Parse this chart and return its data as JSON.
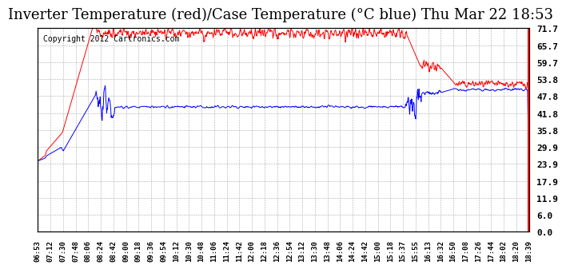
{
  "title": "Inverter Temperature (red)/Case Temperature (°C blue) Thu Mar 22 18:53",
  "copyright": "Copyright 2012 Cartronics.com",
  "ylabel_right_ticks": [
    0.0,
    6.0,
    11.9,
    17.9,
    23.9,
    29.9,
    35.8,
    41.8,
    47.8,
    53.8,
    59.7,
    65.7,
    71.7
  ],
  "xlabels": [
    "06:53",
    "07:12",
    "07:30",
    "07:48",
    "08:06",
    "08:24",
    "08:42",
    "09:00",
    "09:18",
    "09:36",
    "09:54",
    "10:12",
    "10:30",
    "10:48",
    "11:06",
    "11:24",
    "11:42",
    "12:00",
    "12:18",
    "12:36",
    "12:54",
    "13:12",
    "13:30",
    "13:48",
    "14:06",
    "14:24",
    "14:42",
    "15:00",
    "15:18",
    "15:37",
    "15:55",
    "16:13",
    "16:32",
    "16:50",
    "17:08",
    "17:26",
    "17:44",
    "18:02",
    "18:20",
    "18:39"
  ],
  "ymin": 0.0,
  "ymax": 71.7,
  "bg_color": "#ffffff",
  "plot_bg_color": "#ffffff",
  "grid_color": "#aaaaaa",
  "red_color": "#ff0000",
  "blue_color": "#0000ff",
  "title_fontsize": 13,
  "copyright_fontsize": 7
}
